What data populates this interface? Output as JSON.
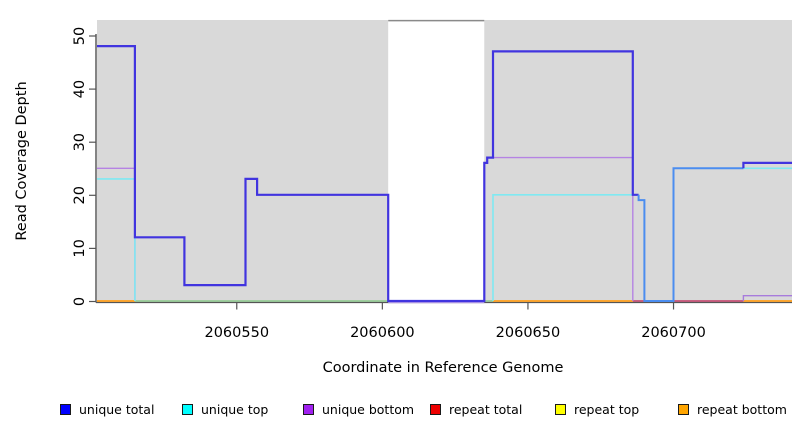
{
  "chart_data": {
    "type": "line",
    "subtype": "step-coverage",
    "title": "",
    "xlabel": "Coordinate in Reference Genome",
    "ylabel": "Read Coverage Depth",
    "xlim": [
      2060502,
      2060740
    ],
    "ylim": [
      0,
      52.8
    ],
    "x_ticks": [
      2060550,
      2060600,
      2060650,
      2060700
    ],
    "y_ticks": [
      0,
      10,
      20,
      30,
      40,
      50
    ],
    "grid": false,
    "background_shading_color": "#d9d9d9",
    "shaded_regions": [
      {
        "x1": 2060502,
        "x2": 2060602
      },
      {
        "x1": 2060635,
        "x2": 2060742
      }
    ],
    "legend_position": "bottom",
    "legend": [
      {
        "label": "unique total",
        "color": "#0000ff"
      },
      {
        "label": "unique top",
        "color": "#00ffff"
      },
      {
        "label": "unique bottom",
        "color": "#a020f0"
      },
      {
        "label": "repeat total",
        "color": "#ee0000"
      },
      {
        "label": "repeat top",
        "color": "#ffff00"
      },
      {
        "label": "repeat bottom",
        "color": "#ffa500"
      }
    ],
    "lines": [
      {
        "name": "gap-top-line",
        "series": "clip-marker",
        "color": "#8a8a8a",
        "width": 1.5,
        "points": [
          [
            2060602,
            52.8
          ],
          [
            2060635,
            52.8
          ]
        ]
      },
      {
        "name": "baseline-green-left",
        "series": "top-overlap-zero",
        "color": "#8cc98c",
        "width": 1.5,
        "points": [
          [
            2060515,
            0
          ],
          [
            2060602,
            0
          ]
        ]
      },
      {
        "name": "baseline-green-mid",
        "series": "top-overlap-zero",
        "color": "#8cc98c",
        "width": 1.5,
        "points": [
          [
            2060635,
            0
          ],
          [
            2060638,
            0
          ]
        ]
      },
      {
        "name": "baseline-violet-gap",
        "series": "unique bottom",
        "color": "#b49de4",
        "width": 1.4,
        "dy": 1.5,
        "points": [
          [
            2060602,
            0
          ],
          [
            2060635,
            0
          ]
        ]
      },
      {
        "name": "baseline-crimson",
        "series": "repeat total",
        "color": "#c23b66",
        "width": 1.4,
        "points": [
          [
            2060686,
            0
          ],
          [
            2060724,
            0
          ]
        ]
      },
      {
        "name": "repeat-bottom-left",
        "series": "repeat bottom",
        "color": "#ff9e1b",
        "width": 1.8,
        "points": [
          [
            2060502,
            0
          ],
          [
            2060515,
            0
          ]
        ]
      },
      {
        "name": "repeat-bottom-mid",
        "series": "repeat bottom",
        "color": "#ff9e1b",
        "width": 1.8,
        "points": [
          [
            2060638,
            0
          ],
          [
            2060686,
            0
          ]
        ]
      },
      {
        "name": "repeat-bottom-right",
        "series": "repeat bottom",
        "color": "#ff9e1b",
        "width": 1.8,
        "points": [
          [
            2060724,
            0
          ],
          [
            2060741,
            0
          ]
        ]
      },
      {
        "name": "unique-bottom-left",
        "series": "unique bottom",
        "color": "#b583e3",
        "width": 1.4,
        "points": [
          [
            2060502,
            25
          ],
          [
            2060515,
            25
          ],
          [
            2060515,
            0
          ]
        ]
      },
      {
        "name": "unique-bottom-mid",
        "series": "unique bottom",
        "color": "#b583e3",
        "width": 1.4,
        "points": [
          [
            2060636,
            27
          ],
          [
            2060686,
            27
          ],
          [
            2060686,
            0
          ]
        ]
      },
      {
        "name": "unique-bottom-right",
        "series": "unique bottom",
        "color": "#a77bdc",
        "width": 1.4,
        "points": [
          [
            2060724,
            0
          ],
          [
            2060724,
            1
          ],
          [
            2060741,
            1
          ]
        ]
      },
      {
        "name": "unique-top-left",
        "series": "unique top",
        "color": "#7fe9f2",
        "width": 1.6,
        "points": [
          [
            2060502,
            23
          ],
          [
            2060515,
            23
          ],
          [
            2060515,
            0
          ]
        ]
      },
      {
        "name": "unique-top-mid",
        "series": "unique top",
        "color": "#7fe9f2",
        "width": 1.6,
        "points": [
          [
            2060638,
            0
          ],
          [
            2060638,
            20
          ],
          [
            2060686,
            20
          ]
        ]
      },
      {
        "name": "unique-top-right",
        "series": "unique top",
        "color": "#7fe9f2",
        "width": 1.6,
        "points": [
          [
            2060724,
            25
          ],
          [
            2060741,
            25
          ]
        ]
      },
      {
        "name": "unique-total-main",
        "series": "unique total",
        "color": "#4134df",
        "width": 2.2,
        "points": [
          [
            2060502,
            48
          ],
          [
            2060515,
            48
          ],
          [
            2060515,
            12
          ],
          [
            2060532,
            12
          ],
          [
            2060532,
            3
          ],
          [
            2060553,
            3
          ],
          [
            2060553,
            23
          ],
          [
            2060557,
            23
          ],
          [
            2060557,
            20
          ],
          [
            2060602,
            20
          ],
          [
            2060602,
            0
          ],
          [
            2060635,
            0
          ],
          [
            2060635,
            26
          ],
          [
            2060636,
            26
          ],
          [
            2060636,
            27
          ],
          [
            2060638,
            27
          ],
          [
            2060638,
            47
          ],
          [
            2060686,
            47
          ],
          [
            2060686,
            20
          ],
          [
            2060688,
            20
          ]
        ]
      },
      {
        "name": "unique-total-overlap",
        "series": "unique total + unique top",
        "color": "#4b8df0",
        "width": 2.0,
        "points": [
          [
            2060688,
            20
          ],
          [
            2060688,
            19
          ],
          [
            2060690,
            19
          ],
          [
            2060690,
            0
          ],
          [
            2060700,
            0
          ],
          [
            2060700,
            25
          ],
          [
            2060724,
            25
          ]
        ]
      },
      {
        "name": "unique-total-right",
        "series": "unique total",
        "color": "#4134df",
        "width": 2.2,
        "points": [
          [
            2060724,
            25
          ],
          [
            2060724,
            26
          ],
          [
            2060741,
            26
          ]
        ]
      }
    ]
  }
}
